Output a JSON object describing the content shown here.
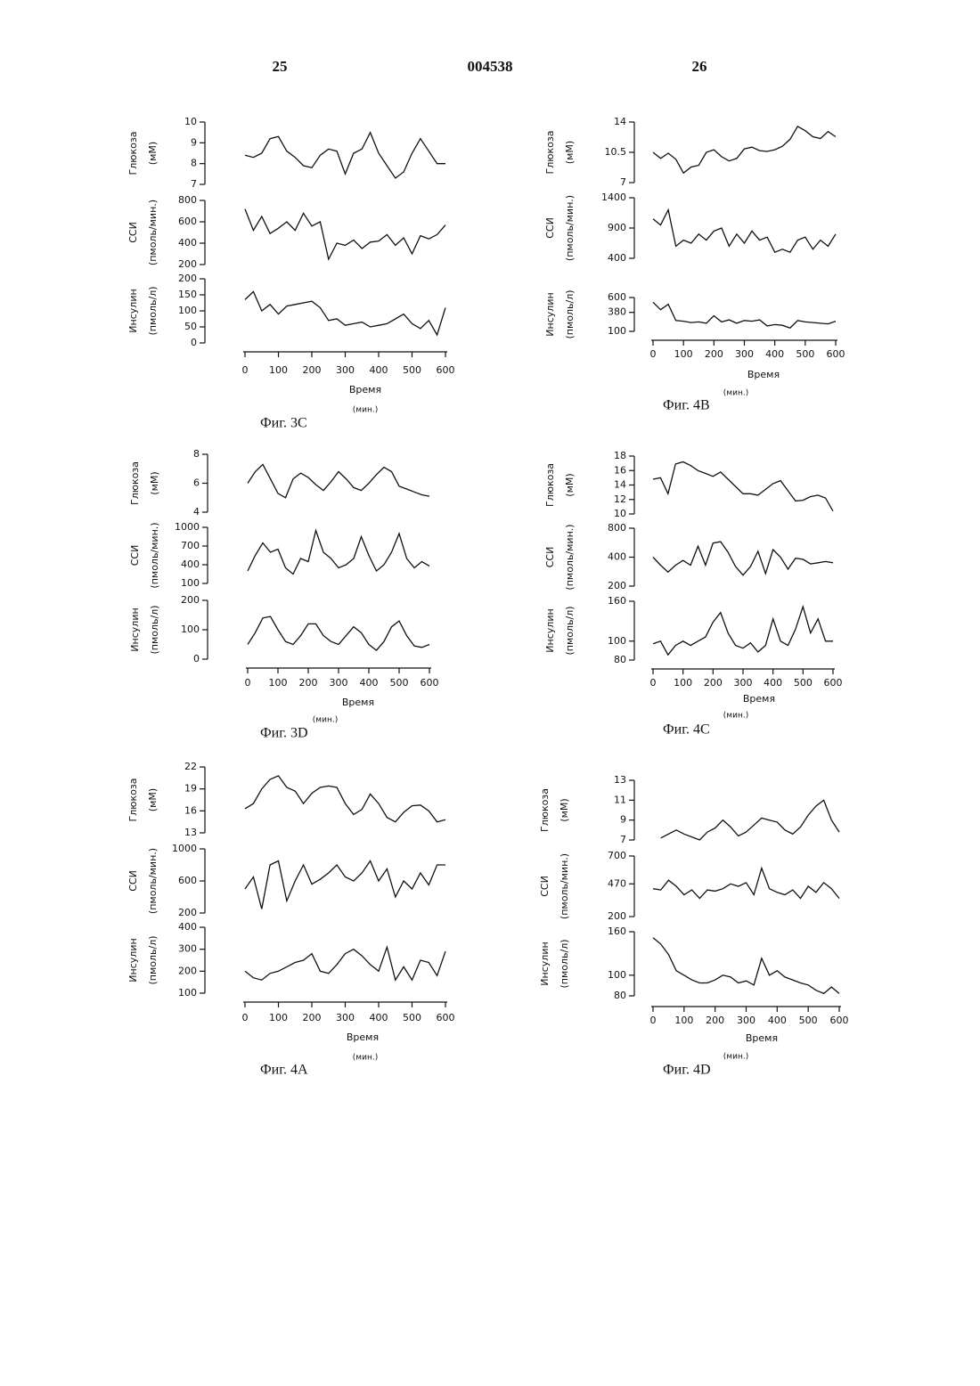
{
  "header": {
    "left": "25",
    "center": "004538",
    "right": "26"
  },
  "chart_data": [
    {
      "type": "line",
      "caption": "Фиг. 3C",
      "xlabel": "Время",
      "xunit": "(мин.)",
      "xlim": [
        0,
        600
      ],
      "xticks": [
        0,
        100,
        200,
        300,
        400,
        500,
        600
      ],
      "x": [
        0,
        25,
        50,
        75,
        100,
        125,
        150,
        175,
        200,
        225,
        250,
        275,
        300,
        325,
        350,
        375,
        400,
        425,
        450,
        475,
        500,
        525,
        550,
        575,
        600
      ],
      "panels": [
        {
          "ylabel": [
            "Глюкоза",
            "(мМ)"
          ],
          "ylim": [
            7,
            10
          ],
          "yticks": [
            7,
            8,
            9,
            10
          ],
          "values": [
            8.4,
            8.3,
            8.5,
            9.2,
            9.3,
            8.6,
            8.3,
            7.9,
            7.8,
            8.4,
            8.7,
            8.6,
            7.5,
            8.5,
            8.7,
            9.5,
            8.5,
            7.9,
            7.3,
            7.6,
            8.5,
            9.2,
            8.6,
            8.0,
            8.0
          ]
        },
        {
          "ylabel": [
            "ССИ",
            "(пмоль/мин.)"
          ],
          "ylim": [
            200,
            800
          ],
          "yticks": [
            200,
            400,
            600,
            800
          ],
          "values": [
            720,
            520,
            650,
            490,
            540,
            600,
            520,
            680,
            560,
            600,
            250,
            400,
            380,
            430,
            350,
            410,
            420,
            480,
            380,
            450,
            300,
            470,
            440,
            480,
            570
          ]
        },
        {
          "ylabel": [
            "Инсулин",
            "(пмоль/л)"
          ],
          "ylim": [
            0,
            200
          ],
          "yticks": [
            0,
            50,
            100,
            150,
            200
          ],
          "values": [
            135,
            160,
            100,
            120,
            90,
            115,
            120,
            125,
            130,
            110,
            70,
            75,
            55,
            60,
            65,
            50,
            55,
            60,
            75,
            90,
            60,
            45,
            70,
            25,
            110
          ]
        }
      ]
    },
    {
      "type": "line",
      "caption": "Фиг. 4B",
      "xlabel": "Время",
      "xunit": "(мин.)",
      "xlim": [
        0,
        600
      ],
      "xticks": [
        0,
        100,
        200,
        300,
        400,
        500,
        600
      ],
      "x": [
        0,
        25,
        50,
        75,
        100,
        125,
        150,
        175,
        200,
        225,
        250,
        275,
        300,
        325,
        350,
        375,
        400,
        425,
        450,
        475,
        500,
        525,
        550,
        575,
        600
      ],
      "panels": [
        {
          "ylabel": [
            "Глюкоза",
            "(мМ)"
          ],
          "ylim": [
            7,
            14
          ],
          "yticks": [
            7,
            10.5,
            14
          ],
          "values": [
            10.5,
            9.8,
            10.4,
            9.7,
            8.1,
            8.8,
            9.0,
            10.5,
            10.8,
            10.0,
            9.5,
            9.8,
            10.9,
            11.1,
            10.7,
            10.6,
            10.8,
            11.2,
            12.0,
            13.5,
            13.0,
            12.3,
            12.1,
            12.9,
            12.3
          ]
        },
        {
          "ylabel": [
            "ССИ",
            "(пмоль/мин.)"
          ],
          "ylim": [
            400,
            1400
          ],
          "yticks": [
            400,
            900,
            1400
          ],
          "values": [
            1050,
            950,
            1200,
            600,
            700,
            650,
            800,
            700,
            850,
            900,
            600,
            800,
            650,
            850,
            700,
            750,
            500,
            550,
            500,
            700,
            750,
            550,
            700,
            600,
            800
          ]
        },
        {
          "ylabel": [
            "Инсулин",
            "(пмоль/л)"
          ],
          "ylim": [
            100,
            600
          ],
          "yticks": [
            100,
            380,
            600
          ],
          "values": [
            530,
            420,
            500,
            260,
            250,
            230,
            240,
            220,
            330,
            240,
            270,
            220,
            260,
            250,
            270,
            180,
            200,
            190,
            150,
            260,
            240,
            230,
            220,
            210,
            250
          ]
        }
      ]
    },
    {
      "type": "line",
      "caption": "Фиг. 3D",
      "xlabel": "Время",
      "xunit": "(мин.)",
      "xlim": [
        0,
        600
      ],
      "xticks": [
        0,
        100,
        200,
        300,
        400,
        500,
        600
      ],
      "x": [
        0,
        25,
        50,
        75,
        100,
        125,
        150,
        175,
        200,
        225,
        250,
        275,
        300,
        325,
        350,
        375,
        400,
        425,
        450,
        475,
        500,
        525,
        550,
        575,
        600
      ],
      "panels": [
        {
          "ylabel": [
            "Глюкоза",
            "(мМ)"
          ],
          "ylim": [
            4,
            8
          ],
          "yticks": [
            4,
            6,
            8
          ],
          "values": [
            6.0,
            6.8,
            7.3,
            6.3,
            5.3,
            5.0,
            6.3,
            6.7,
            6.4,
            5.9,
            5.5,
            6.1,
            6.8,
            6.3,
            5.7,
            5.5,
            6.0,
            6.6,
            7.1,
            6.8,
            5.8,
            5.6,
            5.4,
            5.2,
            5.1
          ]
        },
        {
          "ylabel": [
            "ССИ",
            "(пмоль/мин.)"
          ],
          "ylim": [
            100,
            1000
          ],
          "yticks": [
            100,
            400,
            700,
            1000
          ],
          "values": [
            300,
            550,
            750,
            600,
            650,
            350,
            250,
            500,
            450,
            950,
            600,
            500,
            350,
            400,
            500,
            850,
            550,
            300,
            400,
            600,
            900,
            500,
            350,
            450,
            380
          ]
        },
        {
          "ylabel": [
            "Инсулин",
            "(пмоль/л)"
          ],
          "ylim": [
            0,
            200
          ],
          "yticks": [
            0,
            100,
            200
          ],
          "values": [
            50,
            90,
            140,
            145,
            100,
            60,
            50,
            80,
            120,
            120,
            80,
            60,
            50,
            80,
            110,
            90,
            50,
            30,
            60,
            110,
            130,
            80,
            45,
            40,
            50
          ]
        }
      ]
    },
    {
      "type": "line",
      "caption": "Фиг. 4C",
      "xlabel": "Время",
      "xunit": "(мин.)",
      "xlim": [
        0,
        600
      ],
      "xticks": [
        0,
        100,
        200,
        300,
        400,
        500,
        600
      ],
      "x": [
        0,
        25,
        50,
        75,
        100,
        125,
        150,
        175,
        200,
        225,
        250,
        275,
        300,
        325,
        350,
        375,
        400,
        425,
        450,
        475,
        500,
        525,
        550,
        575,
        600
      ],
      "panels": [
        {
          "ylabel": [
            "Глюкоза",
            "(мМ)"
          ],
          "ylim": [
            10,
            18
          ],
          "yticks": [
            10,
            12,
            14,
            16,
            18
          ],
          "values": [
            14.8,
            15.0,
            12.8,
            16.9,
            17.2,
            16.7,
            16.0,
            15.6,
            15.2,
            15.8,
            14.8,
            13.8,
            12.8,
            12.8,
            12.6,
            13.4,
            14.2,
            14.6,
            13.2,
            11.8,
            11.9,
            12.4,
            12.6,
            12.2,
            10.4
          ]
        },
        {
          "ylabel": [
            "ССИ",
            "(пмоль/мин.)"
          ],
          "log": true,
          "ylim": [
            200,
            800
          ],
          "yticks": [
            200,
            400,
            800
          ],
          "values": [
            400,
            330,
            280,
            330,
            370,
            330,
            520,
            330,
            560,
            580,
            450,
            320,
            260,
            320,
            460,
            270,
            480,
            400,
            300,
            390,
            380,
            340,
            350,
            360,
            350
          ]
        },
        {
          "ylabel": [
            "Инсулин",
            "(пмоль/л)"
          ],
          "log": true,
          "ylim": [
            80,
            160
          ],
          "yticks": [
            80,
            100,
            160
          ],
          "values": [
            97,
            100,
            85,
            95,
            100,
            95,
            100,
            105,
            125,
            140,
            110,
            95,
            92,
            98,
            88,
            95,
            130,
            100,
            95,
            115,
            150,
            110,
            130,
            100,
            100
          ]
        }
      ]
    },
    {
      "type": "line",
      "caption": "Фиг. 4A",
      "xlabel": "Время",
      "xunit": "(мин.)",
      "xlim": [
        0,
        600
      ],
      "xticks": [
        0,
        100,
        200,
        300,
        400,
        500,
        600
      ],
      "x": [
        0,
        25,
        50,
        75,
        100,
        125,
        150,
        175,
        200,
        225,
        250,
        275,
        300,
        325,
        350,
        375,
        400,
        425,
        450,
        475,
        500,
        525,
        550,
        575,
        600
      ],
      "panels": [
        {
          "ylabel": [
            "Глюкоза",
            "(мМ)"
          ],
          "ylim": [
            13,
            22
          ],
          "yticks": [
            13,
            16,
            19,
            22
          ],
          "values": [
            16.3,
            17.0,
            19.0,
            20.3,
            20.8,
            19.2,
            18.7,
            17.0,
            18.4,
            19.2,
            19.4,
            19.2,
            17.0,
            15.5,
            16.2,
            18.3,
            17.0,
            15.1,
            14.5,
            15.8,
            16.7,
            16.8,
            16.0,
            14.5,
            14.8
          ]
        },
        {
          "ylabel": [
            "ССИ",
            "(пмоль/мин.)"
          ],
          "ylim": [
            200,
            1000
          ],
          "yticks": [
            200,
            600,
            1000
          ],
          "values": [
            500,
            650,
            250,
            800,
            850,
            350,
            600,
            800,
            560,
            620,
            700,
            800,
            650,
            600,
            700,
            850,
            600,
            750,
            400,
            600,
            500,
            700,
            550,
            800,
            800
          ]
        },
        {
          "ylabel": [
            "Инсулин",
            "(пмоль/л)"
          ],
          "ylim": [
            100,
            400
          ],
          "yticks": [
            100,
            200,
            300,
            400
          ],
          "values": [
            200,
            170,
            160,
            190,
            200,
            220,
            240,
            250,
            280,
            200,
            190,
            230,
            280,
            300,
            270,
            230,
            200,
            310,
            160,
            220,
            160,
            250,
            240,
            180,
            290
          ]
        }
      ]
    },
    {
      "type": "line",
      "caption": "Фиг. 4D",
      "xlabel": "Время",
      "xunit": "(мин.)",
      "xlim": [
        0,
        600
      ],
      "xticks": [
        0,
        100,
        200,
        300,
        400,
        500,
        600
      ],
      "x": [
        0,
        25,
        50,
        75,
        100,
        125,
        150,
        175,
        200,
        225,
        250,
        275,
        300,
        325,
        350,
        375,
        400,
        425,
        450,
        475,
        500,
        525,
        550,
        575,
        600
      ],
      "panels": [
        {
          "ylabel": [
            "Глюкоза",
            "(мМ)"
          ],
          "ylim": [
            7,
            13
          ],
          "yticks": [
            7,
            9,
            11,
            13
          ],
          "values": [
            null,
            7.2,
            7.6,
            8.0,
            7.6,
            7.3,
            7.0,
            7.8,
            8.2,
            9.0,
            8.3,
            7.4,
            7.8,
            8.5,
            9.2,
            9.0,
            8.8,
            8.0,
            7.6,
            8.3,
            9.5,
            10.4,
            11.0,
            9.0,
            7.8
          ]
        },
        {
          "ylabel": [
            "ССИ",
            "(пмоль/мин.)"
          ],
          "ylim": [
            200,
            700
          ],
          "yticks": [
            200,
            470,
            700
          ],
          "values": [
            430,
            420,
            500,
            450,
            380,
            420,
            350,
            420,
            410,
            430,
            470,
            450,
            480,
            380,
            600,
            430,
            400,
            380,
            420,
            350,
            450,
            400,
            480,
            430,
            350
          ]
        },
        {
          "ylabel": [
            "Инсулин",
            "(пмоль/л)"
          ],
          "log": true,
          "ylim": [
            80,
            160
          ],
          "yticks": [
            80,
            100,
            160
          ],
          "values": [
            150,
            140,
            125,
            105,
            100,
            95,
            92,
            92,
            95,
            100,
            98,
            92,
            94,
            90,
            120,
            100,
            105,
            98,
            95,
            92,
            90,
            85,
            82,
            88,
            82
          ]
        }
      ]
    }
  ]
}
